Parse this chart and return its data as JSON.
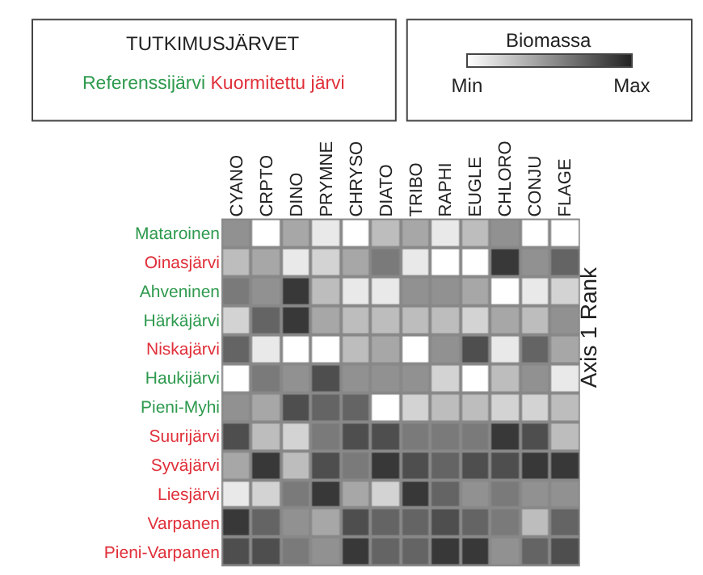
{
  "chart_data": {
    "type": "heatmap",
    "legend_title": "TUTKIMUSJÄRVET",
    "annotations": [
      "Referenssijärvi",
      "Kuormitettu järvi"
    ],
    "categories": [
      "CYANO",
      "CRPTO",
      "DINO",
      "PRYMNE",
      "CHRYSO",
      "DIATO",
      "TRIBO",
      "RAPHI",
      "EUGLE",
      "CHLORO",
      "CONJU",
      "FLAGE"
    ],
    "y_categories": [
      "Mataroinen",
      "Oinasjärvi",
      "Ahveninen",
      "Härkäjärvi",
      "Niskajärvi",
      "Haukijärvi",
      "Pieni-Myhi",
      "Suurijärvi",
      "Syväjärvi",
      "Liesjärvi",
      "Varpanen",
      "Pieni-Varpanen"
    ],
    "colors": [
      "#2e9a4e",
      "#e0303a",
      "#2e9a4e",
      "#2e9a4e",
      "#e0303a",
      "#2e9a4e",
      "#2e9a4e",
      "#e0303a",
      "#e0303a",
      "#e0303a",
      "#e0303a",
      "#e0303a"
    ],
    "cells": [
      [
        0.5,
        0,
        0.4,
        0.1,
        0,
        0.3,
        0.4,
        0.1,
        0.3,
        0.5,
        0,
        0
      ],
      [
        0.3,
        0.4,
        0.1,
        0.2,
        0.4,
        0.6,
        0.1,
        0,
        0,
        0.9,
        0.5,
        0.7
      ],
      [
        0.6,
        0.5,
        0.9,
        0.3,
        0.1,
        0.1,
        0.5,
        0.5,
        0.4,
        0,
        0.1,
        0.2
      ],
      [
        0.2,
        0.7,
        0.9,
        0.4,
        0.3,
        0.3,
        0.3,
        0.3,
        0.2,
        0.4,
        0.3,
        0.5
      ],
      [
        0.7,
        0.1,
        0,
        0,
        0.3,
        0.4,
        0,
        0.5,
        0.8,
        0.1,
        0.7,
        0.4
      ],
      [
        0,
        0.6,
        0.5,
        0.8,
        0.5,
        0.5,
        0.5,
        0.2,
        0,
        0.3,
        0.5,
        0.1
      ],
      [
        0.5,
        0.4,
        0.8,
        0.7,
        0.7,
        0,
        0.2,
        0.3,
        0.3,
        0.2,
        0.2,
        0.3
      ],
      [
        0.8,
        0.3,
        0.2,
        0.6,
        0.8,
        0.8,
        0.6,
        0.6,
        0.6,
        0.9,
        0.8,
        0.3
      ],
      [
        0.4,
        0.9,
        0.3,
        0.8,
        0.6,
        0.9,
        0.8,
        0.7,
        0.8,
        0.8,
        0.9,
        0.9
      ],
      [
        0.1,
        0.2,
        0.6,
        0.9,
        0.4,
        0.2,
        0.9,
        0.7,
        0.5,
        0.6,
        0.5,
        0.5
      ],
      [
        0.9,
        0.7,
        0.5,
        0.4,
        0.8,
        0.7,
        0.7,
        0.8,
        0.7,
        0.6,
        0.3,
        0.7
      ],
      [
        0.8,
        0.8,
        0.6,
        0.5,
        0.9,
        0.7,
        0.7,
        0.9,
        0.9,
        0.5,
        0.7,
        0.8
      ]
    ],
    "clabel": "Biomassa",
    "clim": [
      0,
      1
    ],
    "cticks": [
      {
        "value": 0,
        "label": "Min"
      },
      {
        "value": 1,
        "label": "Max"
      }
    ],
    "y2label": "Axis 1 Rank"
  }
}
